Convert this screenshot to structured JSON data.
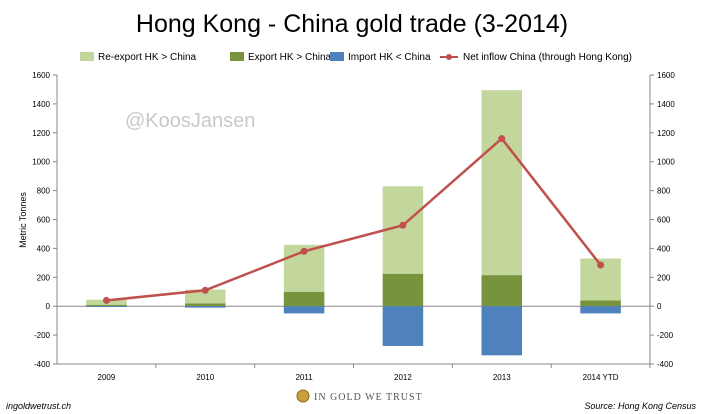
{
  "chart_data": {
    "type": "bar",
    "title": "Hong Kong - China gold trade (3-2014)",
    "ylabel": "Metric Tonnes",
    "ylim": [
      -400,
      1600
    ],
    "yticks": [
      -400,
      -200,
      0,
      200,
      400,
      600,
      800,
      1000,
      1200,
      1400,
      1600
    ],
    "y2lim": [
      -400,
      1600
    ],
    "categories": [
      "2009",
      "2010",
      "2011",
      "2012",
      "2013",
      "2014 YTD"
    ],
    "stacked": true,
    "grid": false,
    "legend": "top",
    "series": [
      {
        "name": "Re-export HK > China",
        "type": "bar",
        "color": "#c3d69b",
        "values": [
          35,
          95,
          325,
          605,
          1280,
          290
        ]
      },
      {
        "name": "Export HK > China",
        "type": "bar",
        "color": "#77933c",
        "values": [
          10,
          20,
          100,
          225,
          215,
          40
        ]
      },
      {
        "name": "Import HK < China",
        "type": "bar",
        "color": "#4f81bd",
        "values": [
          -5,
          -10,
          -50,
          -275,
          -340,
          -50
        ]
      },
      {
        "name": "Net inflow China (through Hong Kong)",
        "type": "line",
        "color": "#c0504d",
        "values": [
          40,
          110,
          380,
          560,
          1160,
          285
        ]
      }
    ]
  },
  "watermark": "@KoosJansen",
  "footer": {
    "left": "ingoldwetrust.ch",
    "center": "IN GOLD WE TRUST",
    "right": "Source: Hong Kong Census"
  },
  "colors": {
    "axis": "#888888",
    "logo_gold": "#c9a13a"
  }
}
